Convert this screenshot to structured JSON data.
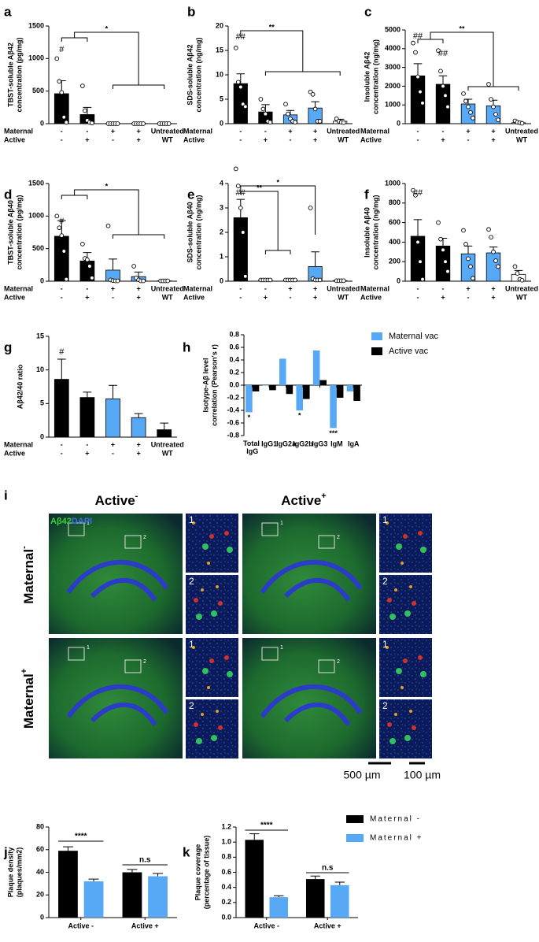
{
  "chart_data": [
    {
      "type": "bar",
      "panel": "a",
      "ylabel": [
        "TBST-soluble Aβ42",
        "concentration (pg/mg)"
      ],
      "row_labels": [
        "Maternal",
        "Active"
      ],
      "maternal": [
        "-",
        "-",
        "+",
        "+",
        "Untreated"
      ],
      "active": [
        "-",
        "+",
        "-",
        "+",
        "WT"
      ],
      "colors": [
        "#000000",
        "#000000",
        "#58a9f5",
        "#58a9f5",
        "#ffffff"
      ],
      "values": [
        460,
        140,
        5,
        5,
        5
      ],
      "errors": [
        200,
        110,
        3,
        3,
        3
      ],
      "points": [
        [
          1000,
          650,
          480,
          100,
          20
        ],
        [
          580,
          200,
          50,
          20,
          10
        ],
        [
          0,
          0,
          0,
          0,
          0
        ],
        [
          0,
          0,
          0,
          0,
          0
        ],
        [
          0,
          0,
          0,
          0,
          0
        ]
      ],
      "ylim": [
        0,
        1500
      ],
      "yticks": [
        0,
        500,
        1000,
        1500
      ],
      "annotations": [
        "#",
        "*"
      ]
    },
    {
      "type": "bar",
      "panel": "b",
      "ylabel": [
        "SDS-soluble Aβ42",
        "concentration (ng/mg)"
      ],
      "row_labels": [
        "Maternal",
        "Active"
      ],
      "maternal": [
        "-",
        "-",
        "+",
        "+",
        "Untreated"
      ],
      "active": [
        "-",
        "+",
        "-",
        "+",
        "WT"
      ],
      "colors": [
        "#000000",
        "#000000",
        "#58a9f5",
        "#58a9f5",
        "#ffffff"
      ],
      "values": [
        8.2,
        2.4,
        1.8,
        3.2,
        0.5
      ],
      "errors": [
        2,
        1.5,
        0.9,
        1.3,
        0.4
      ],
      "points": [
        [
          15.5,
          8.5,
          7.5,
          4,
          3.5
        ],
        [
          5,
          3,
          2,
          0.5,
          0.3
        ],
        [
          4,
          2,
          1,
          0.5,
          0.3
        ],
        [
          6.5,
          6,
          3,
          0.5,
          0.5
        ],
        [
          1,
          0.5,
          0.3,
          0.2
        ]
      ],
      "ylim": [
        0,
        20
      ],
      "yticks": [
        0,
        5,
        10,
        15,
        20
      ],
      "annotations": [
        "##",
        "**"
      ]
    },
    {
      "type": "bar",
      "panel": "c",
      "ylabel": [
        "Insoluble Aβ42",
        "concentration (ng/mg)"
      ],
      "row_labels": [
        "Maternal",
        "Active"
      ],
      "maternal": [
        "-",
        "-",
        "+",
        "+",
        "Untreated"
      ],
      "active": [
        "-",
        "+",
        "-",
        "+",
        "WT"
      ],
      "colors": [
        "#000000",
        "#000000",
        "#58a9f5",
        "#58a9f5",
        "#ffffff"
      ],
      "values": [
        2550,
        2100,
        1050,
        950,
        50
      ],
      "errors": [
        650,
        450,
        250,
        300,
        40
      ],
      "points": [
        [
          4300,
          3800,
          2500,
          1700,
          1100
        ],
        [
          3900,
          2800,
          2000,
          1500,
          900
        ],
        [
          1600,
          1200,
          900,
          600,
          300
        ],
        [
          2100,
          1300,
          900,
          500,
          200
        ],
        [
          150,
          80,
          50,
          20
        ]
      ],
      "ylim": [
        0,
        5000
      ],
      "yticks": [
        0,
        1000,
        2000,
        3000,
        4000,
        5000
      ],
      "annotations": [
        "##",
        "##",
        "**"
      ]
    },
    {
      "type": "bar",
      "panel": "d",
      "ylabel": [
        "TBST-soluble Aβ40",
        "concentration (pg/mg)"
      ],
      "row_labels": [
        "Maternal",
        "Active"
      ],
      "maternal": [
        "-",
        "-",
        "+",
        "+",
        "Untreated"
      ],
      "active": [
        "-",
        "+",
        "-",
        "+",
        "WT"
      ],
      "colors": [
        "#000000",
        "#000000",
        "#58a9f5",
        "#58a9f5",
        "#ffffff"
      ],
      "values": [
        690,
        310,
        170,
        70,
        5
      ],
      "errors": [
        240,
        130,
        170,
        70,
        3
      ],
      "points": [
        [
          1000,
          820,
          700,
          460,
          30
        ],
        [
          570,
          350,
          330,
          230,
          50
        ],
        [
          850,
          20,
          10,
          5,
          5
        ],
        [
          230,
          50,
          20,
          5,
          5
        ],
        [
          5,
          5,
          5,
          5
        ]
      ],
      "ylim": [
        0,
        1500
      ],
      "yticks": [
        0,
        500,
        1000,
        1500
      ],
      "annotations": [
        "#",
        "*"
      ]
    },
    {
      "type": "bar",
      "panel": "e",
      "ylabel": [
        "SDS-soluble Aβ40",
        "concentration (ng/mg)"
      ],
      "row_labels": [
        "Maternal",
        "Active"
      ],
      "maternal": [
        "-",
        "-",
        "+",
        "+",
        "Untreated"
      ],
      "active": [
        "-",
        "+",
        "-",
        "+",
        "WT"
      ],
      "colors": [
        "#000000",
        "#000000",
        "#58a9f5",
        "#58a9f5",
        "#ffffff"
      ],
      "values": [
        2.6,
        0.05,
        0.05,
        0.6,
        0.02
      ],
      "errors": [
        0.75,
        0.02,
        0.02,
        0.6,
        0.02
      ],
      "points": [
        [
          4.6,
          3.9,
          3.0,
          2.0,
          0.2
        ],
        [
          0.05,
          0.05,
          0.05,
          0.05,
          0.05
        ],
        [
          0.05,
          0.05,
          0.05,
          0.05,
          0.05
        ],
        [
          3,
          0.1,
          0.05,
          0.05,
          0.05
        ],
        [
          0.02,
          0.02,
          0.02,
          0.02
        ]
      ],
      "ylim": [
        0,
        4
      ],
      "yticks": [
        0,
        1,
        2,
        3,
        4
      ],
      "annotations": [
        "##",
        "**",
        "*"
      ]
    },
    {
      "type": "bar",
      "panel": "f",
      "ylabel": [
        "Insoluble Aβ40",
        "concentration (ng/mg)"
      ],
      "row_labels": [
        "Maternal",
        "Active"
      ],
      "maternal": [
        "-",
        "-",
        "+",
        "+",
        "Untreated"
      ],
      "active": [
        "-",
        "+",
        "-",
        "+",
        "WT"
      ],
      "colors": [
        "#000000",
        "#000000",
        "#58a9f5",
        "#58a9f5",
        "#ffffff"
      ],
      "values": [
        460,
        360,
        280,
        290,
        70
      ],
      "errors": [
        170,
        80,
        80,
        60,
        40
      ],
      "points": [
        [
          930,
          880,
          400,
          200,
          20
        ],
        [
          600,
          430,
          320,
          200,
          100
        ],
        [
          520,
          380,
          230,
          150,
          30
        ],
        [
          530,
          450,
          300,
          210,
          150
        ],
        [
          150,
          80,
          20,
          10
        ]
      ],
      "ylim": [
        0,
        1000
      ],
      "yticks": [
        0,
        200,
        400,
        600,
        800,
        1000
      ],
      "annotations": [
        "##"
      ]
    },
    {
      "type": "bar",
      "panel": "g",
      "ylabel": [
        "Aβ42/40 ratio"
      ],
      "row_labels": [
        "Maternal",
        "Active"
      ],
      "maternal": [
        "-",
        "-",
        "+",
        "+",
        "Untreated"
      ],
      "active": [
        "-",
        "+",
        "-",
        "+",
        "WT"
      ],
      "colors": [
        "#000000",
        "#000000",
        "#58a9f5",
        "#58a9f5",
        "#000000"
      ],
      "values": [
        8.6,
        5.9,
        5.7,
        2.9,
        1.1
      ],
      "errors": [
        3,
        0.8,
        2,
        0.6,
        1
      ],
      "ylim": [
        0,
        15
      ],
      "yticks": [
        0,
        5,
        10,
        15
      ],
      "annotations": [
        "#"
      ]
    },
    {
      "type": "bar",
      "panel": "h",
      "ylabel": [
        "Isotype-Aβ level",
        "correlation (Pearson's r)"
      ],
      "categories": [
        "Total IgG",
        "IgG1",
        "IgG2a",
        "IgG2b",
        "IgG3",
        "IgM",
        "IgA"
      ],
      "series": [
        {
          "name": "Maternal vac",
          "color": "#58a9f5",
          "values": [
            -0.43,
            0.0,
            0.42,
            -0.4,
            0.55,
            -0.68,
            -0.1
          ]
        },
        {
          "name": "Active vac",
          "color": "#000000",
          "values": [
            -0.1,
            -0.08,
            -0.14,
            -0.22,
            0.08,
            -0.2,
            -0.25
          ]
        }
      ],
      "ylim": [
        -0.8,
        0.8
      ],
      "yticks": [
        -0.8,
        -0.6,
        -0.4,
        -0.2,
        {
          "value": 0,
          "label": "0.0"
        },
        0.2,
        0.4,
        0.6,
        0.8
      ],
      "annotations": [
        "*",
        "*",
        "***"
      ]
    },
    {
      "type": "bar",
      "panel": "j",
      "ylabel": [
        "Plaque density",
        "(plaques/mm2)"
      ],
      "categories": [
        "Active -",
        "Active +"
      ],
      "series": [
        {
          "name": "Maternal -",
          "color": "#000000",
          "values": [
            59,
            40
          ],
          "errors": [
            3.5,
            2.5
          ]
        },
        {
          "name": "Maternal +",
          "color": "#58a9f5",
          "values": [
            32,
            36.5
          ],
          "errors": [
            2,
            2.5
          ]
        }
      ],
      "ylim": [
        0,
        80
      ],
      "yticks": [
        0,
        20,
        40,
        60,
        80
      ],
      "annotations": [
        "****",
        "n.s"
      ]
    },
    {
      "type": "bar",
      "panel": "k",
      "ylabel": [
        "Plaque coverage",
        "(percentage of tissue)"
      ],
      "categories": [
        "Active -",
        "Active +"
      ],
      "series": [
        {
          "name": "Maternal -",
          "color": "#000000",
          "values": [
            1.03,
            0.51
          ],
          "errors": [
            0.08,
            0.04
          ]
        },
        {
          "name": "Maternal +",
          "color": "#58a9f5",
          "values": [
            0.27,
            0.43
          ],
          "errors": [
            0.02,
            0.04
          ]
        }
      ],
      "ylim": [
        0,
        1.2
      ],
      "yticks": [
        {
          "value": 0,
          "label": "0.0"
        },
        0.2,
        0.4,
        0.6,
        0.8,
        {
          "value": 1,
          "label": "1.0"
        },
        1.2
      ],
      "annotations": [
        "****",
        "n.s"
      ],
      "legend": true
    }
  ],
  "image_panel": {
    "panel": "i",
    "columns": [
      {
        "text": "Active",
        "sup": "-"
      },
      {
        "text": "Active",
        "sup": "+"
      }
    ],
    "rows": [
      {
        "text": "Maternal",
        "sup": "-"
      },
      {
        "text": "Maternal",
        "sup": "+"
      }
    ],
    "stain": [
      "Aβ42",
      "DAPI"
    ],
    "inset_numbers": [
      "1",
      "2"
    ],
    "scale_bars": [
      "500 µm",
      "100 µm"
    ]
  }
}
